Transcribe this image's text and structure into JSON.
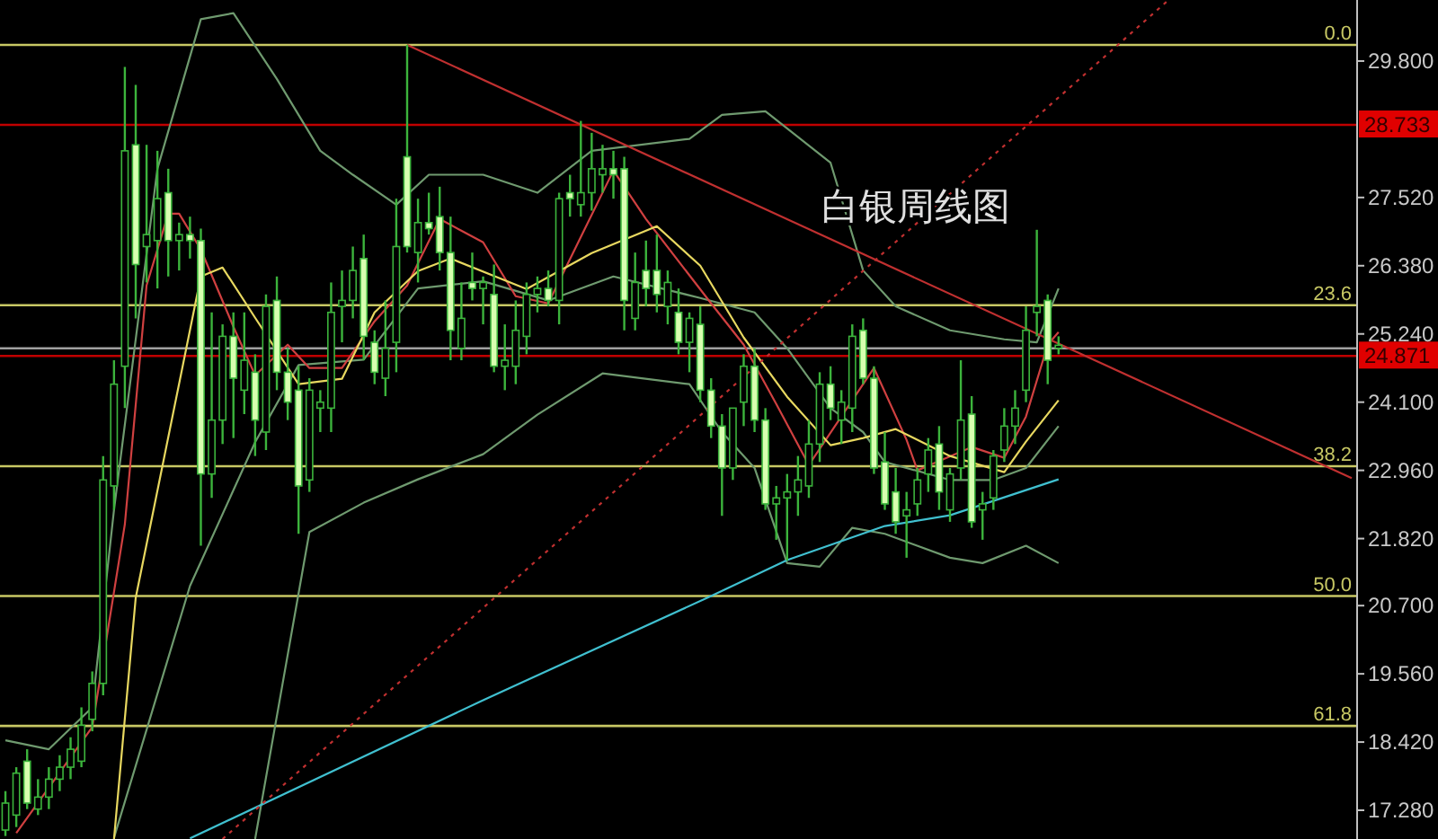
{
  "chart_data": {
    "type": "candlestick",
    "title": "白银周线图",
    "categories": [
      null,
      null,
      null,
      null,
      null,
      null,
      null,
      null,
      null,
      null,
      null,
      null,
      null,
      null,
      null,
      null,
      null,
      null,
      null,
      null,
      null,
      null,
      null,
      null,
      null,
      null,
      null,
      null,
      null,
      null,
      null,
      null,
      null,
      null,
      null,
      null,
      null,
      null,
      null,
      null,
      null,
      null,
      null,
      null,
      null,
      null,
      null,
      null,
      null,
      null,
      null,
      null,
      null,
      null,
      null,
      null,
      null,
      null,
      null,
      null,
      null,
      null,
      null,
      null,
      null,
      null,
      null,
      null,
      null,
      null,
      null,
      null,
      null,
      null,
      null,
      null,
      null,
      null,
      null,
      null,
      null,
      null,
      null,
      null,
      null,
      null,
      null,
      null,
      null,
      null,
      null,
      null,
      null,
      null,
      null,
      null,
      null,
      null,
      null,
      null,
      null,
      null,
      null,
      null,
      null,
      null,
      null,
      null,
      null,
      null,
      null,
      null,
      null,
      null,
      null,
      null,
      null,
      null,
      null,
      null,
      null,
      null,
      null,
      null,
      null
    ],
    "colors": [
      "#3cb43c",
      "#3cb43c",
      "#d8ffb0",
      "#3cb43c",
      "#3cb43c",
      "#3cb43c",
      "#3cb43c",
      "#3cb43c",
      "#3cb43c",
      "#3cb43c",
      "#3cb43c",
      "#3cb43c",
      "#d8ffb0",
      "#3cb43c",
      "#3cb43c",
      "#d8ffb0",
      "#3cb43c",
      "#d8ffb0",
      "#d8ffb0",
      "#3cb43c",
      "#3cb43c",
      "#d8ffb0",
      "#3cb43c",
      "#d8ffb0",
      "#3cb43c",
      "#d8ffb0",
      "#d8ffb0",
      "#d8ffb0",
      "#3cb43c",
      "#3cb43c",
      "#3cb43c",
      "#3cb43c",
      "#3cb43c",
      "#d8ffb0",
      "#d8ffb0",
      "#3cb43c",
      "#3cb43c",
      "#d8ffb0",
      "#3cb43c",
      "#d8ffb0",
      "#d8ffb0",
      "#d8ffb0",
      "#3cb43c",
      "#d8ffb0",
      "#3cb43c",
      "#d8ffb0",
      "#3cb43c",
      "#3cb43c",
      "#3cb43c",
      "#3cb43c",
      "#d8ffb0",
      "#3cb43c",
      "#d8ffb0",
      "#3cb43c",
      "#3cb43c",
      "#3cb43c",
      "#d8ffb0",
      "#d8ffb0",
      "#3cb43c",
      "#d8ffb0",
      "#d8ffb0",
      "#3cb43c",
      "#d8ffb0",
      "#3cb43c",
      "#d8ffb0",
      "#d8ffb0",
      "#d8ffb0",
      "#3cb43c",
      "#3cb43c",
      "#d8ffb0",
      "#d8ffb0",
      "#3cb43c",
      "#3cb43c",
      "#3cb43c",
      "#3cb43c",
      "#3cb43c",
      "#d8ffb0",
      "#3cb43c",
      "#3cb43c",
      "#d8ffb0",
      "#d8ffb0",
      "#d8ffb0",
      "#d8ffb0",
      "#3cb43c",
      "#3cb43c",
      "#3cb43c",
      "#d8ffb0",
      "#3cb43c",
      "#3cb43c",
      "#d8ffb0",
      "#3cb43c",
      "#3cb43c",
      "#3cb43c",
      "#3cb43c",
      "#3cb43c",
      "#3cb43c",
      "#d8ffb0",
      "#3cb43c",
      null,
      null,
      null,
      null,
      null,
      null,
      null,
      null,
      null,
      null,
      null,
      null,
      null,
      null,
      null,
      null,
      null,
      null,
      null,
      null,
      null,
      null,
      null,
      null,
      null,
      null,
      null
    ],
    "ohlc": [
      [
        16.95,
        17.6,
        16.85,
        17.4
      ],
      [
        17.2,
        18.0,
        17.0,
        17.9
      ],
      [
        18.1,
        18.3,
        17.3,
        17.4
      ],
      [
        17.3,
        17.8,
        17.2,
        17.5
      ],
      [
        17.5,
        18.0,
        17.3,
        17.8
      ],
      [
        17.8,
        18.2,
        17.6,
        18.0
      ],
      [
        18.0,
        18.5,
        17.8,
        18.3
      ],
      [
        18.1,
        19.0,
        18.0,
        18.7
      ],
      [
        18.8,
        19.6,
        18.6,
        19.4
      ],
      [
        19.4,
        23.2,
        19.2,
        22.8
      ],
      [
        22.7,
        24.8,
        22.3,
        24.4
      ],
      [
        24.7,
        29.7,
        24.0,
        28.3
      ],
      [
        28.4,
        29.4,
        25.5,
        26.4
      ],
      [
        26.7,
        28.4,
        26.1,
        26.9
      ],
      [
        26.8,
        28.3,
        26.0,
        27.5
      ],
      [
        27.6,
        28.0,
        26.2,
        26.8
      ],
      [
        26.8,
        27.1,
        26.3,
        26.9
      ],
      [
        26.9,
        27.2,
        26.5,
        26.8
      ],
      [
        26.8,
        27.0,
        21.7,
        22.9
      ],
      [
        22.9,
        25.6,
        22.5,
        23.8
      ],
      [
        23.8,
        25.4,
        23.4,
        25.2
      ],
      [
        25.2,
        25.6,
        23.5,
        24.5
      ],
      [
        24.3,
        25.6,
        23.9,
        24.8
      ],
      [
        24.6,
        24.9,
        23.2,
        23.8
      ],
      [
        23.6,
        25.9,
        23.3,
        25.7
      ],
      [
        25.8,
        26.2,
        24.3,
        24.6
      ],
      [
        24.6,
        25.0,
        23.8,
        24.1
      ],
      [
        24.3,
        24.7,
        21.9,
        22.7
      ],
      [
        22.8,
        24.5,
        22.6,
        24.3
      ],
      [
        24.0,
        24.3,
        23.6,
        24.1
      ],
      [
        24.0,
        26.1,
        23.6,
        25.6
      ],
      [
        25.7,
        26.3,
        25.1,
        25.8
      ],
      [
        25.8,
        26.7,
        25.5,
        26.3
      ],
      [
        26.5,
        26.9,
        24.8,
        25.2
      ],
      [
        25.1,
        25.3,
        24.4,
        24.6
      ],
      [
        24.5,
        25.8,
        24.2,
        25.0
      ],
      [
        25.1,
        27.5,
        24.6,
        26.7
      ],
      [
        28.2,
        30.07,
        26.6,
        26.7
      ],
      [
        26.6,
        27.5,
        26.1,
        27.1
      ],
      [
        27.1,
        27.6,
        26.9,
        27.0
      ],
      [
        27.2,
        27.7,
        26.3,
        26.6
      ],
      [
        26.6,
        27.2,
        24.8,
        25.3
      ],
      [
        25.0,
        26.1,
        24.8,
        25.5
      ],
      [
        26.1,
        26.6,
        25.8,
        26.0
      ],
      [
        26.0,
        26.2,
        25.4,
        26.1
      ],
      [
        25.9,
        26.4,
        24.6,
        24.7
      ],
      [
        24.7,
        25.4,
        24.3,
        24.8
      ],
      [
        24.7,
        25.8,
        24.4,
        25.3
      ],
      [
        25.2,
        26.1,
        24.9,
        25.9
      ],
      [
        25.9,
        26.2,
        25.6,
        26.0
      ],
      [
        26.0,
        26.3,
        25.7,
        25.8
      ],
      [
        25.8,
        27.6,
        25.4,
        27.5
      ],
      [
        27.6,
        27.9,
        27.2,
        27.5
      ],
      [
        27.4,
        28.8,
        27.2,
        27.6
      ],
      [
        27.6,
        28.6,
        27.3,
        28.0
      ],
      [
        27.9,
        28.4,
        27.6,
        28.0
      ],
      [
        28.0,
        28.3,
        27.5,
        27.9
      ],
      [
        28.0,
        28.2,
        25.3,
        25.8
      ],
      [
        25.5,
        26.6,
        25.3,
        26.1
      ],
      [
        26.3,
        26.8,
        25.7,
        26.0
      ],
      [
        26.3,
        26.9,
        25.6,
        25.9
      ],
      [
        25.7,
        26.3,
        25.4,
        26.1
      ],
      [
        25.6,
        26.0,
        24.9,
        25.1
      ],
      [
        25.1,
        25.6,
        24.6,
        25.5
      ],
      [
        25.4,
        25.7,
        24.1,
        24.3
      ],
      [
        24.3,
        24.5,
        23.5,
        23.7
      ],
      [
        23.7,
        23.9,
        22.2,
        23.0
      ],
      [
        23.0,
        24.0,
        22.8,
        24.0
      ],
      [
        24.1,
        24.9,
        23.7,
        24.7
      ],
      [
        24.7,
        25.0,
        23.6,
        23.8
      ],
      [
        23.8,
        24.0,
        22.3,
        22.4
      ],
      [
        22.4,
        22.7,
        21.8,
        22.5
      ],
      [
        22.5,
        22.9,
        21.45,
        22.6
      ],
      [
        22.6,
        23.2,
        22.2,
        22.8
      ],
      [
        22.7,
        23.8,
        22.5,
        23.4
      ],
      [
        23.4,
        24.6,
        23.1,
        24.4
      ],
      [
        24.4,
        24.7,
        23.8,
        24.0
      ],
      [
        23.8,
        24.3,
        23.4,
        24.1
      ],
      [
        24.0,
        25.4,
        23.6,
        25.2
      ],
      [
        25.3,
        25.5,
        24.4,
        24.5
      ],
      [
        24.5,
        24.7,
        22.9,
        23.0
      ],
      [
        23.1,
        23.6,
        22.3,
        22.4
      ],
      [
        22.6,
        23.0,
        21.9,
        22.1
      ],
      [
        22.2,
        22.6,
        21.5,
        22.3
      ],
      [
        22.4,
        23.0,
        22.2,
        22.8
      ],
      [
        22.9,
        23.5,
        22.6,
        23.3
      ],
      [
        23.4,
        23.7,
        22.3,
        22.6
      ],
      [
        22.3,
        23.0,
        22.1,
        22.9
      ],
      [
        23.0,
        24.8,
        22.8,
        23.8
      ],
      [
        23.9,
        24.2,
        22.0,
        22.1
      ],
      [
        22.3,
        22.6,
        21.8,
        22.4
      ],
      [
        22.5,
        23.3,
        22.3,
        23.2
      ],
      [
        23.3,
        24.0,
        23.1,
        23.7
      ],
      [
        23.7,
        24.3,
        23.4,
        24.0
      ],
      [
        24.3,
        25.7,
        24.1,
        25.3
      ],
      [
        25.6,
        26.98,
        25.2,
        25.7
      ],
      [
        25.8,
        25.9,
        24.4,
        24.8
      ],
      [
        25.0,
        25.2,
        24.9,
        25.05
      ],
      null,
      null,
      null,
      null,
      null,
      null,
      null,
      null,
      null,
      null,
      null,
      null,
      null,
      null,
      null,
      null,
      null,
      null,
      null,
      null,
      null,
      null,
      null,
      null,
      null,
      null,
      null
    ],
    "series": [
      {
        "type": "line",
        "color": "#6f9a6f",
        "values": [
          18.45,
          null,
          null,
          null,
          18.3,
          null,
          null,
          null,
          19.0,
          null,
          22.3,
          null,
          null,
          null,
          28.0,
          null,
          null,
          null,
          30.5,
          null,
          null,
          30.6,
          null,
          null,
          null,
          29.5,
          null,
          null,
          null,
          28.3,
          null,
          null,
          27.9,
          null,
          null,
          null,
          27.4,
          null,
          null,
          27.9,
          null,
          null,
          null,
          null,
          27.9,
          null,
          null,
          null,
          null,
          27.6,
          null,
          null,
          null,
          null,
          28.3,
          null,
          null,
          null,
          null,
          null,
          null,
          null,
          null,
          28.5,
          null,
          null,
          28.9,
          null,
          null,
          null,
          28.96,
          null,
          null,
          null,
          null,
          null,
          28.1,
          null,
          null,
          26.3,
          null,
          null,
          25.7,
          null,
          null,
          null,
          null,
          25.3,
          null,
          null,
          null,
          null,
          25.15,
          null,
          null,
          25.1,
          null,
          26.0,
          null,
          null,
          null,
          null,
          null,
          null,
          null,
          null,
          null,
          null,
          null,
          null,
          null,
          null,
          null,
          null,
          null,
          null,
          null,
          null,
          null,
          null,
          null,
          null,
          null,
          null,
          null
        ]
      },
      {
        "type": "line",
        "color": "#6f9a6f",
        "values": [
          null,
          null,
          null,
          null,
          null,
          null,
          null,
          null,
          null,
          null,
          16.82,
          null,
          null,
          null,
          null,
          null,
          null,
          21.03,
          null,
          null,
          null,
          null,
          null,
          23.43,
          null,
          null,
          null,
          24.72,
          null,
          null,
          null,
          null,
          null,
          24.81,
          null,
          null,
          null,
          null,
          26.0,
          null,
          null,
          null,
          null,
          null,
          26.12,
          null,
          null,
          null,
          null,
          null,
          25.8,
          null,
          null,
          null,
          null,
          null,
          26.2,
          null,
          null,
          null,
          null,
          null,
          null,
          null,
          25.84,
          null,
          null,
          null,
          null,
          25.6,
          null,
          null,
          25.0,
          null,
          null,
          null,
          24.0,
          null,
          null,
          23.6,
          null,
          23.1,
          null,
          null,
          null,
          null,
          null,
          22.8,
          null,
          null,
          null,
          22.8,
          null,
          null,
          23.0,
          null,
          null,
          23.7,
          null,
          null,
          null,
          null,
          null,
          null,
          null,
          null,
          null,
          null,
          null,
          null,
          null,
          null,
          null,
          null,
          null,
          null,
          null,
          null,
          null,
          null,
          null,
          null,
          null,
          null,
          null
        ]
      },
      {
        "type": "line",
        "color": "#6f9a6f",
        "values": [
          null,
          null,
          null,
          null,
          null,
          null,
          null,
          null,
          null,
          null,
          null,
          null,
          null,
          null,
          null,
          null,
          null,
          null,
          null,
          null,
          null,
          null,
          null,
          16.8,
          null,
          null,
          null,
          null,
          21.93,
          null,
          null,
          null,
          null,
          22.42,
          null,
          null,
          null,
          null,
          22.81,
          null,
          null,
          null,
          null,
          null,
          23.23,
          null,
          null,
          null,
          null,
          23.89,
          null,
          null,
          null,
          null,
          null,
          24.58,
          null,
          null,
          null,
          null,
          null,
          null,
          null,
          24.4,
          null,
          null,
          23.6,
          null,
          null,
          23.0,
          null,
          null,
          21.41,
          null,
          null,
          21.35,
          null,
          null,
          22.0,
          null,
          null,
          21.9,
          null,
          null,
          null,
          null,
          null,
          21.5,
          null,
          null,
          21.41,
          null,
          null,
          null,
          21.7,
          null,
          null,
          21.41,
          null,
          null,
          null,
          null,
          null,
          null,
          null,
          null,
          null,
          null,
          null,
          null,
          null,
          null,
          null,
          null,
          null,
          null,
          null,
          null,
          null,
          null,
          null,
          null,
          null,
          null,
          null
        ]
      },
      {
        "type": "line",
        "color": "#d04040",
        "values": [
          null,
          16.9,
          null,
          null,
          null,
          null,
          null,
          null,
          18.67,
          null,
          null,
          22.06,
          null,
          26.05,
          null,
          27.25,
          27.25,
          null,
          26.65,
          null,
          null,
          25.36,
          null,
          24.55,
          null,
          null,
          25.06,
          null,
          24.67,
          null,
          null,
          24.67,
          null,
          null,
          25.45,
          null,
          null,
          26.05,
          null,
          null,
          27.16,
          null,
          null,
          null,
          26.77,
          null,
          null,
          25.87,
          null,
          null,
          25.75,
          null,
          null,
          null,
          null,
          null,
          27.97,
          null,
          null,
          27.16,
          null,
          null,
          null,
          null,
          null,
          25.75,
          null,
          null,
          25.06,
          null,
          null,
          24.07,
          null,
          null,
          23.05,
          null,
          null,
          23.86,
          null,
          null,
          24.67,
          null,
          null,
          23.47,
          22.96,
          null,
          null,
          null,
          null,
          23.35,
          null,
          null,
          23.17,
          null,
          23.86,
          null,
          25.06,
          25.27,
          null,
          null,
          null,
          null,
          null,
          null,
          null,
          null,
          null,
          null,
          null,
          null,
          null,
          null,
          null,
          null,
          null,
          null,
          null,
          null,
          null,
          null,
          null,
          null,
          null,
          null,
          null
        ]
      },
      {
        "type": "line",
        "color": "#e8d860",
        "values": [
          null,
          null,
          null,
          null,
          null,
          null,
          null,
          null,
          null,
          null,
          16.8,
          null,
          20.83,
          null,
          null,
          null,
          null,
          null,
          26.2,
          null,
          26.35,
          null,
          null,
          25.51,
          null,
          null,
          null,
          24.4,
          null,
          null,
          null,
          24.49,
          null,
          null,
          25.6,
          null,
          null,
          null,
          26.29,
          null,
          null,
          26.5,
          null,
          null,
          null,
          null,
          null,
          null,
          25.99,
          null,
          null,
          null,
          null,
          null,
          26.59,
          null,
          null,
          null,
          null,
          null,
          27.04,
          null,
          null,
          null,
          26.38,
          null,
          null,
          null,
          25.18,
          null,
          null,
          null,
          24.19,
          null,
          null,
          null,
          23.38,
          null,
          null,
          23.5,
          null,
          null,
          23.65,
          null,
          null,
          null,
          null,
          23.2,
          null,
          null,
          null,
          null,
          22.93,
          null,
          23.44,
          null,
          null,
          24.13,
          null,
          null,
          null,
          null,
          null,
          null,
          null,
          null,
          null,
          null,
          null,
          null,
          null,
          null,
          null,
          null,
          null,
          null,
          null,
          null,
          null,
          null,
          null,
          null,
          null,
          null,
          null
        ]
      },
      {
        "type": "line",
        "color": "#40c0d0",
        "values": [
          null,
          null,
          null,
          null,
          null,
          null,
          null,
          null,
          null,
          null,
          null,
          null,
          null,
          null,
          null,
          null,
          null,
          16.81,
          null,
          null,
          null,
          null,
          null,
          null,
          null,
          null,
          null,
          null,
          null,
          null,
          null,
          null,
          null,
          null,
          null,
          null,
          null,
          null,
          null,
          null,
          null,
          null,
          null,
          null,
          19.12,
          null,
          null,
          null,
          null,
          null,
          null,
          null,
          null,
          null,
          null,
          null,
          null,
          null,
          null,
          null,
          null,
          null,
          null,
          null,
          null,
          20.86,
          null,
          null,
          null,
          null,
          null,
          null,
          21.46,
          null,
          null,
          null,
          null,
          null,
          null,
          null,
          null,
          22.03,
          null,
          null,
          null,
          null,
          null,
          22.21,
          null,
          null,
          null,
          null,
          null,
          null,
          null,
          null,
          null,
          22.81,
          null,
          null,
          null,
          null,
          null,
          null,
          null,
          null,
          null,
          null,
          null,
          null,
          null,
          null,
          null,
          null,
          null,
          null,
          null,
          null,
          null,
          null,
          null,
          null,
          null,
          null,
          null
        ]
      },
      {
        "type": "line",
        "color": "#c03030",
        "values": [
          null,
          null,
          null,
          null,
          null,
          null,
          null,
          null,
          null,
          null,
          null,
          null,
          null,
          null,
          null,
          null,
          null,
          null,
          null,
          null,
          null,
          null,
          null,
          null,
          null,
          null,
          null,
          null,
          null,
          null,
          null,
          null,
          null,
          null,
          null,
          null,
          null,
          30.07,
          null,
          null,
          null,
          null,
          null,
          null,
          null,
          null,
          null,
          null,
          null,
          null,
          null,
          null,
          null,
          null,
          null,
          null,
          null,
          null,
          null,
          null,
          null,
          null,
          null,
          null,
          null,
          null,
          null,
          null,
          null,
          null,
          null,
          null,
          null,
          null,
          null,
          null,
          null,
          null,
          null,
          null,
          null,
          null,
          null,
          null,
          null,
          null,
          null,
          null,
          null,
          null,
          null,
          null,
          null,
          null,
          null,
          null,
          null,
          null,
          null,
          null,
          null,
          null,
          null,
          null,
          null,
          null,
          null,
          null,
          null,
          null,
          null,
          null,
          null,
          null,
          null,
          null,
          null,
          null,
          null,
          null,
          null,
          null,
          null,
          null,
          22.83
        ]
      },
      {
        "type": "line",
        "color": "#c03030",
        "line_style": "dotted",
        "values": [
          null,
          null,
          null,
          null,
          null,
          null,
          null,
          null,
          null,
          null,
          null,
          null,
          null,
          null,
          null,
          null,
          null,
          null,
          null,
          null,
          16.8,
          null,
          null,
          null,
          null,
          null,
          null,
          null,
          null,
          null,
          null,
          null,
          null,
          null,
          null,
          null,
          null,
          null,
          null,
          null,
          null,
          null,
          null,
          null,
          null,
          null,
          null,
          null,
          null,
          null,
          null,
          null,
          null,
          null,
          null,
          null,
          null,
          null,
          null,
          null,
          null,
          null,
          null,
          null,
          null,
          null,
          null,
          null,
          null,
          null,
          null,
          null,
          null,
          null,
          null,
          null,
          null,
          null,
          null,
          null,
          null,
          null,
          null,
          null,
          null,
          null,
          null,
          null,
          null,
          null,
          null,
          null,
          null,
          null,
          null,
          null,
          null,
          null,
          null,
          null,
          null,
          null,
          null,
          null,
          null,
          null,
          null,
          30.8,
          null,
          null,
          null,
          null,
          null,
          null,
          null,
          null,
          null,
          null,
          null,
          null,
          null,
          null,
          null,
          null,
          null
        ]
      }
    ],
    "ref_lines": [
      {
        "axis": "y",
        "value": 30.07,
        "color": "#c8c864"
      },
      {
        "axis": "y",
        "value": 28.733,
        "label": "28.733",
        "color": "#c00000"
      },
      {
        "axis": "y",
        "value": 25.72,
        "color": "#c8c864"
      },
      {
        "axis": "y",
        "value": 25.0,
        "color": "#a0a0a0"
      },
      {
        "axis": "y",
        "value": 24.871,
        "label": "24.871",
        "color": "#c00000"
      },
      {
        "axis": "y",
        "value": 23.03,
        "color": "#c8c864"
      },
      {
        "axis": "y",
        "value": 20.86,
        "color": "#c8c864"
      },
      {
        "axis": "y",
        "value": 18.69,
        "color": "#c8c864"
      }
    ],
    "annotations": [
      {
        "text": "0.0",
        "y": 30.07
      },
      {
        "text": "23.6",
        "y": 25.72
      },
      {
        "text": "38.2",
        "y": 23.03
      },
      {
        "text": "50.0",
        "y": 20.86
      },
      {
        "text": "61.8",
        "y": 18.69
      }
    ],
    "ylim": [
      16.8,
      30.82
    ],
    "yticks": [
      {
        "value": 17.28,
        "label": "17.280"
      },
      {
        "value": 18.42,
        "label": "18.420"
      },
      {
        "value": 19.56,
        "label": "19.560"
      },
      {
        "value": 20.7,
        "label": "20.700"
      },
      {
        "value": 21.82,
        "label": "21.820"
      },
      {
        "value": 22.96,
        "label": "22.960"
      },
      {
        "value": 24.1,
        "label": "24.100"
      },
      {
        "value": 25.24,
        "label": "25.240"
      },
      {
        "value": 26.38,
        "label": "26.380"
      },
      {
        "value": 27.52,
        "label": "27.520"
      },
      {
        "value": 29.8,
        "label": "29.800"
      }
    ],
    "tick_labels": "y",
    "grid": false
  }
}
